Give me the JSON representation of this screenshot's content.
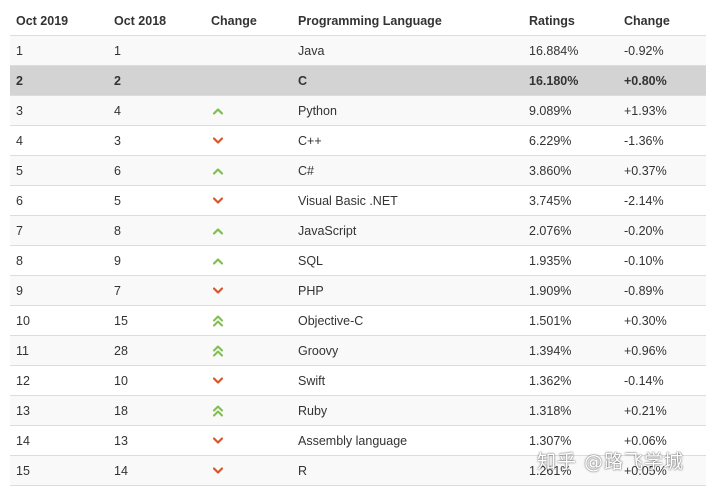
{
  "headers": {
    "rank": "Oct 2019",
    "prev_rank": "Oct 2018",
    "change": "Change",
    "language": "Programming Language",
    "ratings": "Ratings",
    "delta": "Change"
  },
  "colors": {
    "up": "#7fbe4f",
    "down": "#d9552c",
    "highlight_row": "#d3d3d3",
    "stripe_row": "#f9f9f9",
    "border": "#dddddd"
  },
  "rows": [
    {
      "rank": "1",
      "prev": "1",
      "trend": "none",
      "trend_icon": "",
      "language": "Java",
      "rating": "16.884%",
      "delta": "-0.92%"
    },
    {
      "rank": "2",
      "prev": "2",
      "trend": "none",
      "trend_icon": "",
      "language": "C",
      "rating": "16.180%",
      "delta": "+0.80%"
    },
    {
      "rank": "3",
      "prev": "4",
      "trend": "up",
      "trend_icon": "chevron-up-icon",
      "language": "Python",
      "rating": "9.089%",
      "delta": "+1.93%"
    },
    {
      "rank": "4",
      "prev": "3",
      "trend": "down",
      "trend_icon": "chevron-down-icon",
      "language": "C++",
      "rating": "6.229%",
      "delta": "-1.36%"
    },
    {
      "rank": "5",
      "prev": "6",
      "trend": "up",
      "trend_icon": "chevron-up-icon",
      "language": "C#",
      "rating": "3.860%",
      "delta": "+0.37%"
    },
    {
      "rank": "6",
      "prev": "5",
      "trend": "down",
      "trend_icon": "chevron-down-icon",
      "language": "Visual Basic .NET",
      "rating": "3.745%",
      "delta": "-2.14%"
    },
    {
      "rank": "7",
      "prev": "8",
      "trend": "up",
      "trend_icon": "chevron-up-icon",
      "language": "JavaScript",
      "rating": "2.076%",
      "delta": "-0.20%"
    },
    {
      "rank": "8",
      "prev": "9",
      "trend": "up",
      "trend_icon": "chevron-up-icon",
      "language": "SQL",
      "rating": "1.935%",
      "delta": "-0.10%"
    },
    {
      "rank": "9",
      "prev": "7",
      "trend": "down",
      "trend_icon": "chevron-down-icon",
      "language": "PHP",
      "rating": "1.909%",
      "delta": "-0.89%"
    },
    {
      "rank": "10",
      "prev": "15",
      "trend": "double-up",
      "trend_icon": "double-chevron-up-icon",
      "language": "Objective-C",
      "rating": "1.501%",
      "delta": "+0.30%"
    },
    {
      "rank": "11",
      "prev": "28",
      "trend": "double-up",
      "trend_icon": "double-chevron-up-icon",
      "language": "Groovy",
      "rating": "1.394%",
      "delta": "+0.96%"
    },
    {
      "rank": "12",
      "prev": "10",
      "trend": "down",
      "trend_icon": "chevron-down-icon",
      "language": "Swift",
      "rating": "1.362%",
      "delta": "-0.14%"
    },
    {
      "rank": "13",
      "prev": "18",
      "trend": "double-up",
      "trend_icon": "double-chevron-up-icon",
      "language": "Ruby",
      "rating": "1.318%",
      "delta": "+0.21%"
    },
    {
      "rank": "14",
      "prev": "13",
      "trend": "down",
      "trend_icon": "chevron-down-icon",
      "language": "Assembly language",
      "rating": "1.307%",
      "delta": "+0.06%"
    },
    {
      "rank": "15",
      "prev": "14",
      "trend": "down",
      "trend_icon": "chevron-down-icon",
      "language": "R",
      "rating": "1.261%",
      "delta": "+0.05%"
    }
  ],
  "highlight_rank": "2",
  "watermark": "知乎 @路飞学城"
}
